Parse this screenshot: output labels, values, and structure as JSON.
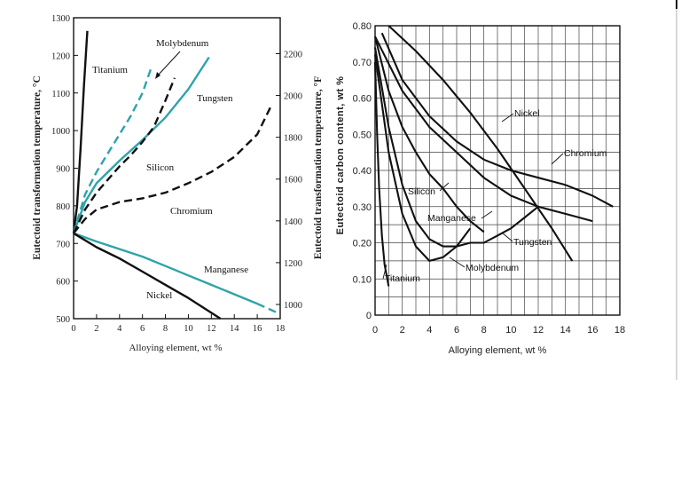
{
  "chart_data": [
    {
      "type": "line",
      "panel": "left",
      "ylabel": "Eutectoid transformation temperature, °C",
      "y2label": "Eutectoid transformation temperature, °F",
      "xlabel": "Alloying element, wt %",
      "xlim": [
        0,
        18
      ],
      "ylim": [
        500,
        1300
      ],
      "y2lim": [
        932,
        2372
      ],
      "x_ticks": [
        0,
        2,
        4,
        6,
        8,
        10,
        12,
        14,
        16,
        18
      ],
      "y_ticks": [
        500,
        600,
        700,
        800,
        900,
        1000,
        1100,
        1200,
        1300
      ],
      "y2_ticks": [
        1000,
        1200,
        1400,
        1600,
        1800,
        2000,
        2200
      ],
      "grid": false,
      "series": [
        {
          "name": "Titanium",
          "color": "#111111",
          "dash": "solid",
          "x": [
            0,
            0.3,
            0.6,
            0.9,
            1.2
          ],
          "y": [
            727,
            800,
            950,
            1120,
            1265
          ]
        },
        {
          "name": "Molybdenum",
          "color": "#2fa3a8",
          "dash": "dashed",
          "x": [
            0,
            1,
            2,
            3,
            4,
            5,
            6,
            6.8
          ],
          "y": [
            727,
            830,
            890,
            940,
            990,
            1040,
            1100,
            1170
          ]
        },
        {
          "name": "Tungsten",
          "color": "#2fa3a8",
          "dash": "solid",
          "x": [
            0,
            1,
            2,
            4,
            6,
            8,
            10,
            11.8
          ],
          "y": [
            727,
            810,
            860,
            920,
            975,
            1035,
            1110,
            1195
          ]
        },
        {
          "name": "Silicon",
          "color": "#111111",
          "dash": "dashed",
          "x": [
            0,
            1,
            2,
            3,
            4,
            5,
            6,
            7,
            8,
            8.8
          ],
          "y": [
            727,
            790,
            835,
            870,
            905,
            935,
            970,
            1010,
            1080,
            1140
          ]
        },
        {
          "name": "Chromium",
          "color": "#111111",
          "dash": "dashed",
          "x": [
            0,
            1,
            2,
            4,
            6,
            8,
            10,
            12,
            14,
            16,
            17.2
          ],
          "y": [
            727,
            765,
            790,
            810,
            820,
            835,
            860,
            890,
            930,
            990,
            1065
          ]
        },
        {
          "name": "Manganese",
          "color": "#2fa3a8",
          "dash": "solid-dashed",
          "x": [
            0,
            2,
            4,
            6,
            8,
            10,
            12,
            14,
            16,
            17.8
          ],
          "y": [
            727,
            705,
            685,
            665,
            640,
            615,
            590,
            565,
            540,
            515
          ]
        },
        {
          "name": "Nickel",
          "color": "#111111",
          "dash": "solid",
          "x": [
            0,
            2,
            4,
            6,
            8,
            10,
            12.8
          ],
          "y": [
            727,
            690,
            660,
            625,
            590,
            555,
            500
          ]
        }
      ]
    },
    {
      "type": "line",
      "panel": "right",
      "ylabel": "Eutectoid carbon content, wt %",
      "xlabel": "Alloying element, wt %",
      "xlim": [
        0,
        18
      ],
      "ylim": [
        0,
        0.8
      ],
      "x_ticks": [
        0,
        2,
        4,
        6,
        8,
        10,
        12,
        14,
        16,
        18
      ],
      "y_ticks": [
        "0",
        "0.10",
        "0.20",
        "0.30",
        "0.40",
        "0.50",
        "0.60",
        "0.70",
        "0.80"
      ],
      "grid": true,
      "series": [
        {
          "name": "Titanium",
          "color": "#111111",
          "dash": "solid",
          "x": [
            0,
            0.15,
            0.3,
            0.5,
            0.7,
            1.0
          ],
          "y": [
            0.7,
            0.5,
            0.35,
            0.22,
            0.14,
            0.08
          ]
        },
        {
          "name": "Molybdenum",
          "color": "#111111",
          "dash": "solid",
          "x": [
            0,
            1,
            2,
            3,
            4,
            5,
            6,
            7
          ],
          "y": [
            0.72,
            0.45,
            0.28,
            0.19,
            0.15,
            0.16,
            0.19,
            0.24
          ]
        },
        {
          "name": "Silicon",
          "color": "#111111",
          "dash": "solid",
          "x": [
            0,
            1,
            2,
            3,
            4,
            5,
            6,
            7,
            8
          ],
          "y": [
            0.77,
            0.62,
            0.52,
            0.45,
            0.39,
            0.35,
            0.3,
            0.26,
            0.23
          ]
        },
        {
          "name": "Manganese",
          "color": "#111111",
          "dash": "solid",
          "x": [
            0,
            1,
            2,
            3,
            4,
            5,
            6,
            7,
            8,
            9,
            10,
            11,
            12
          ],
          "y": [
            0.74,
            0.52,
            0.36,
            0.26,
            0.21,
            0.19,
            0.19,
            0.2,
            0.2,
            0.22,
            0.24,
            0.27,
            0.3
          ]
        },
        {
          "name": "Tungsten",
          "color": "#111111",
          "dash": "solid",
          "x": [
            0,
            2,
            4,
            6,
            8,
            10,
            12,
            14,
            16
          ],
          "y": [
            0.77,
            0.62,
            0.52,
            0.45,
            0.38,
            0.33,
            0.3,
            0.28,
            0.26
          ]
        },
        {
          "name": "Chromium",
          "color": "#111111",
          "dash": "solid",
          "x": [
            0.5,
            2,
            4,
            6,
            8,
            10,
            12,
            14,
            16,
            17.5
          ],
          "y": [
            0.78,
            0.65,
            0.55,
            0.48,
            0.43,
            0.4,
            0.38,
            0.36,
            0.33,
            0.3
          ]
        },
        {
          "name": "Nickel",
          "color": "#111111",
          "dash": "solid",
          "x": [
            1,
            3,
            5,
            7,
            9,
            11,
            13,
            14.5
          ],
          "y": [
            0.8,
            0.73,
            0.65,
            0.56,
            0.46,
            0.35,
            0.24,
            0.15
          ]
        }
      ]
    }
  ]
}
